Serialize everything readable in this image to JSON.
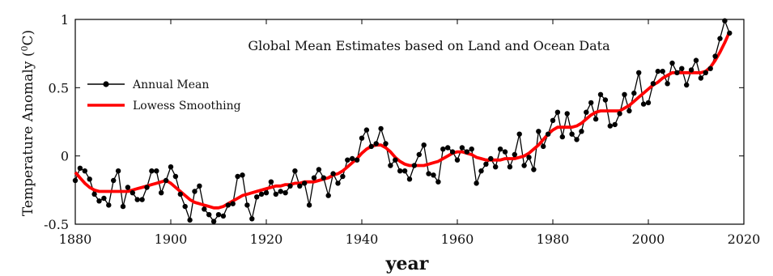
{
  "chart_data": {
    "type": "line",
    "title": "Global Mean Estimates based on Land and Ocean Data",
    "xlabel": "year",
    "ylabel": "Temperature Anomaly (°C)",
    "ylabel_main": "Temperature Anomaly (",
    "ylabel_sup": "0",
    "ylabel_unit": "C)",
    "xlim": [
      1880,
      2020
    ],
    "ylim": [
      -0.5,
      1
    ],
    "xticks": [
      "1880",
      "1900",
      "1920",
      "1940",
      "1960",
      "1980",
      "2000",
      "2020"
    ],
    "yticks": [
      "-0.5",
      "0",
      "0.5",
      "1"
    ],
    "legend_position": "upper-left",
    "grid": false,
    "x": [
      1880,
      1881,
      1882,
      1883,
      1884,
      1885,
      1886,
      1887,
      1888,
      1889,
      1890,
      1891,
      1892,
      1893,
      1894,
      1895,
      1896,
      1897,
      1898,
      1899,
      1900,
      1901,
      1902,
      1903,
      1904,
      1905,
      1906,
      1907,
      1908,
      1909,
      1910,
      1911,
      1912,
      1913,
      1914,
      1915,
      1916,
      1917,
      1918,
      1919,
      1920,
      1921,
      1922,
      1923,
      1924,
      1925,
      1926,
      1927,
      1928,
      1929,
      1930,
      1931,
      1932,
      1933,
      1934,
      1935,
      1936,
      1937,
      1938,
      1939,
      1940,
      1941,
      1942,
      1943,
      1944,
      1945,
      1946,
      1947,
      1948,
      1949,
      1950,
      1951,
      1952,
      1953,
      1954,
      1955,
      1956,
      1957,
      1958,
      1959,
      1960,
      1961,
      1962,
      1963,
      1964,
      1965,
      1966,
      1967,
      1968,
      1969,
      1970,
      1971,
      1972,
      1973,
      1974,
      1975,
      1976,
      1977,
      1978,
      1979,
      1980,
      1981,
      1982,
      1983,
      1984,
      1985,
      1986,
      1987,
      1988,
      1989,
      1990,
      1991,
      1992,
      1993,
      1994,
      1995,
      1996,
      1997,
      1998,
      1999,
      2000,
      2001,
      2002,
      2003,
      2004,
      2005,
      2006,
      2007,
      2008,
      2009,
      2010,
      2011,
      2012,
      2013,
      2014,
      2015,
      2016,
      2017
    ],
    "series": [
      {
        "name": "Annual Mean",
        "color": "#000000",
        "marker": "circle",
        "values": [
          -0.18,
          -0.09,
          -0.11,
          -0.17,
          -0.28,
          -0.33,
          -0.31,
          -0.36,
          -0.18,
          -0.11,
          -0.37,
          -0.23,
          -0.27,
          -0.32,
          -0.32,
          -0.23,
          -0.11,
          -0.11,
          -0.27,
          -0.18,
          -0.08,
          -0.15,
          -0.28,
          -0.37,
          -0.47,
          -0.26,
          -0.22,
          -0.39,
          -0.43,
          -0.48,
          -0.43,
          -0.44,
          -0.36,
          -0.35,
          -0.15,
          -0.14,
          -0.36,
          -0.46,
          -0.3,
          -0.28,
          -0.27,
          -0.19,
          -0.28,
          -0.26,
          -0.27,
          -0.22,
          -0.11,
          -0.22,
          -0.2,
          -0.36,
          -0.16,
          -0.1,
          -0.16,
          -0.29,
          -0.13,
          -0.2,
          -0.15,
          -0.03,
          -0.02,
          -0.03,
          0.13,
          0.19,
          0.07,
          0.09,
          0.2,
          0.09,
          -0.07,
          -0.03,
          -0.11,
          -0.11,
          -0.17,
          -0.07,
          0.01,
          0.08,
          -0.13,
          -0.14,
          -0.19,
          0.05,
          0.06,
          0.03,
          -0.03,
          0.06,
          0.03,
          0.05,
          -0.2,
          -0.11,
          -0.06,
          -0.02,
          -0.08,
          0.05,
          0.03,
          -0.08,
          0.01,
          0.16,
          -0.07,
          -0.01,
          -0.1,
          0.18,
          0.07,
          0.16,
          0.26,
          0.32,
          0.14,
          0.31,
          0.16,
          0.12,
          0.18,
          0.32,
          0.39,
          0.27,
          0.45,
          0.41,
          0.22,
          0.23,
          0.31,
          0.45,
          0.33,
          0.46,
          0.61,
          0.38,
          0.39,
          0.53,
          0.62,
          0.62,
          0.53,
          0.68,
          0.61,
          0.64,
          0.52,
          0.63,
          0.7,
          0.57,
          0.61,
          0.64,
          0.73,
          0.86,
          0.99,
          0.9
        ]
      },
      {
        "name": "Lowess Smoothing",
        "color": "#ff0000",
        "values": [
          -0.12,
          -0.16,
          -0.2,
          -0.23,
          -0.25,
          -0.26,
          -0.26,
          -0.26,
          -0.26,
          -0.26,
          -0.26,
          -0.26,
          -0.25,
          -0.24,
          -0.23,
          -0.22,
          -0.21,
          -0.2,
          -0.19,
          -0.18,
          -0.2,
          -0.23,
          -0.26,
          -0.29,
          -0.32,
          -0.34,
          -0.35,
          -0.36,
          -0.37,
          -0.38,
          -0.38,
          -0.37,
          -0.35,
          -0.33,
          -0.31,
          -0.29,
          -0.28,
          -0.27,
          -0.26,
          -0.25,
          -0.24,
          -0.23,
          -0.22,
          -0.22,
          -0.21,
          -0.21,
          -0.2,
          -0.2,
          -0.19,
          -0.19,
          -0.19,
          -0.18,
          -0.17,
          -0.16,
          -0.14,
          -0.13,
          -0.11,
          -0.08,
          -0.05,
          -0.02,
          0.02,
          0.05,
          0.07,
          0.08,
          0.08,
          0.06,
          0.03,
          -0.01,
          -0.04,
          -0.06,
          -0.07,
          -0.07,
          -0.07,
          -0.07,
          -0.06,
          -0.05,
          -0.04,
          -0.02,
          0.0,
          0.02,
          0.03,
          0.03,
          0.02,
          0.01,
          -0.01,
          -0.02,
          -0.03,
          -0.03,
          -0.03,
          -0.03,
          -0.02,
          -0.02,
          -0.02,
          -0.01,
          0.0,
          0.02,
          0.05,
          0.08,
          0.12,
          0.16,
          0.19,
          0.21,
          0.21,
          0.21,
          0.21,
          0.22,
          0.24,
          0.27,
          0.3,
          0.32,
          0.33,
          0.33,
          0.33,
          0.33,
          0.33,
          0.35,
          0.37,
          0.4,
          0.43,
          0.46,
          0.49,
          0.52,
          0.54,
          0.57,
          0.59,
          0.61,
          0.61,
          0.61,
          0.61,
          0.61,
          0.61,
          0.61,
          0.62,
          0.65,
          0.7,
          0.76,
          0.83,
          0.91
        ]
      }
    ]
  }
}
